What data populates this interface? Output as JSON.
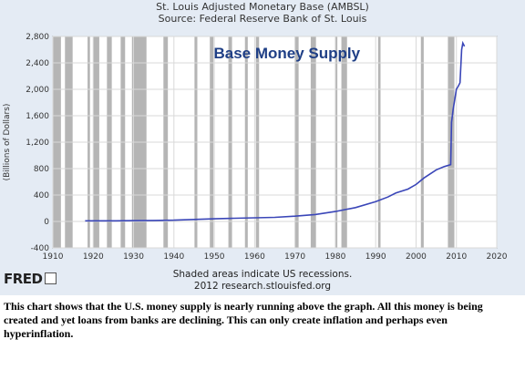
{
  "header": {
    "title": "St. Louis Adjusted Monetary Base (AMBSL)",
    "source": "Source: Federal Reserve Bank of St. Louis"
  },
  "chart_data": {
    "type": "line",
    "title": "Base Money Supply",
    "ylabel": "(Billions of Dollars)",
    "xlabel": "",
    "xlim": [
      1910,
      2020
    ],
    "ylim": [
      -400,
      2800
    ],
    "x_ticks": [
      1910,
      1920,
      1930,
      1940,
      1950,
      1960,
      1970,
      1980,
      1990,
      2000,
      2010,
      2020
    ],
    "y_ticks": [
      -400,
      0,
      400,
      800,
      1200,
      1600,
      2000,
      2400,
      2800
    ],
    "y_tick_labels": [
      "-400",
      "0",
      "400",
      "800",
      "1,200",
      "1,600",
      "2,000",
      "2,400",
      "2,800"
    ],
    "grid": true,
    "line_color": "#3a46b8",
    "recession_color": "#b5b5b5",
    "recessions": [
      [
        1910.0,
        1912.0
      ],
      [
        1913.0,
        1914.9
      ],
      [
        1918.6,
        1919.2
      ],
      [
        1920.0,
        1921.5
      ],
      [
        1923.4,
        1924.6
      ],
      [
        1926.8,
        1927.9
      ],
      [
        1929.6,
        1933.2
      ],
      [
        1937.4,
        1938.5
      ],
      [
        1945.1,
        1945.8
      ],
      [
        1948.9,
        1949.8
      ],
      [
        1953.5,
        1954.4
      ],
      [
        1957.6,
        1958.3
      ],
      [
        1960.3,
        1961.1
      ],
      [
        1969.9,
        1970.9
      ],
      [
        1973.9,
        1975.2
      ],
      [
        1980.0,
        1980.5
      ],
      [
        1981.5,
        1982.9
      ],
      [
        1990.6,
        1991.2
      ],
      [
        2001.2,
        2001.9
      ],
      [
        2007.9,
        2009.5
      ]
    ],
    "series": [
      {
        "x": [
          1918,
          1925,
          1930,
          1935,
          1940,
          1945,
          1950,
          1955,
          1960,
          1965,
          1970,
          1975,
          1980,
          1985,
          1990,
          1993,
          1995,
          1998,
          2000,
          2002,
          2005,
          2007,
          2008.6,
          2008.8,
          2009.2,
          2009.6,
          2010.0,
          2010.5,
          2010.9,
          2011.3,
          2011.6,
          2012.0
        ],
        "y": [
          10,
          10,
          12,
          15,
          20,
          30,
          40,
          48,
          55,
          62,
          80,
          105,
          150,
          210,
          300,
          370,
          430,
          490,
          560,
          660,
          780,
          830,
          860,
          1500,
          1700,
          1850,
          2000,
          2050,
          2100,
          2600,
          2700,
          2650
        ]
      }
    ]
  },
  "footer": {
    "note1": "Shaded areas indicate US recessions.",
    "note2": "2012 research.stlouisfed.org"
  },
  "logo": {
    "text": "FRED"
  },
  "caption": {
    "text": "This chart shows that the U.S. money supply is nearly running above the graph.  All this money is being created and yet loans from banks are declining.  This can only create inflation and perhaps even hyperinflation."
  }
}
